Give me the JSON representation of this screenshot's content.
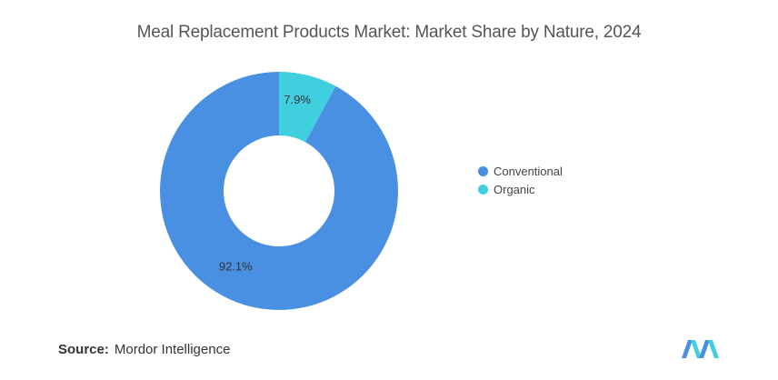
{
  "title": "Meal Replacement Products Market: Market Share by Nature, 2024",
  "source": {
    "label": "Source:",
    "value": "Mordor Intelligence"
  },
  "colors": {
    "conventional": "#4a90e2",
    "organic": "#3fcfde",
    "logo_blue": "#4a90e2",
    "logo_teal": "#3fcfde"
  },
  "logo_icon": "mordor-intelligence-logo",
  "chart_data": {
    "type": "pie",
    "donut": true,
    "title": "Meal Replacement Products Market: Market Share by Nature, 2024",
    "legend_position": "right",
    "slices": [
      {
        "name": "Conventional",
        "value": 92.1,
        "label": "92.1%",
        "color": "#4a90e2"
      },
      {
        "name": "Organic",
        "value": 7.9,
        "label": "7.9%",
        "color": "#3fcfde"
      }
    ]
  }
}
